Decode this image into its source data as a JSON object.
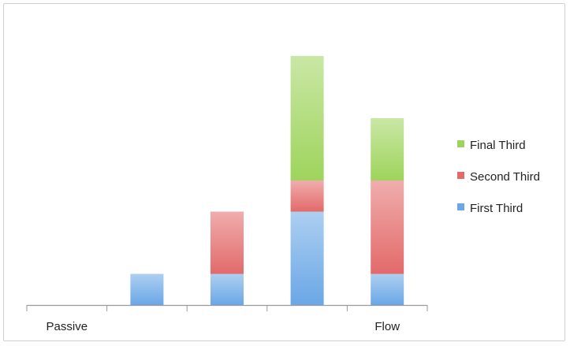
{
  "chart_data": {
    "type": "bar",
    "stacked": true,
    "title": "",
    "xlabel": "",
    "ylabel": "",
    "categories": [
      "Passive",
      "",
      "",
      "",
      "Flow"
    ],
    "series": [
      {
        "name": "First Third",
        "color": "#6aa7e6",
        "values": [
          0,
          1,
          1,
          3,
          1
        ]
      },
      {
        "name": "Second Third",
        "color": "#e36a6a",
        "values": [
          0,
          0,
          2,
          1,
          3
        ]
      },
      {
        "name": "Final Third",
        "color": "#9ed45c",
        "values": [
          0,
          0,
          0,
          4,
          2
        ]
      }
    ],
    "ylim": [
      0,
      8
    ],
    "grid": false,
    "y_axis_visible": false,
    "legend_position": "right",
    "legend_order": [
      "Final Third",
      "Second Third",
      "First Third"
    ]
  }
}
